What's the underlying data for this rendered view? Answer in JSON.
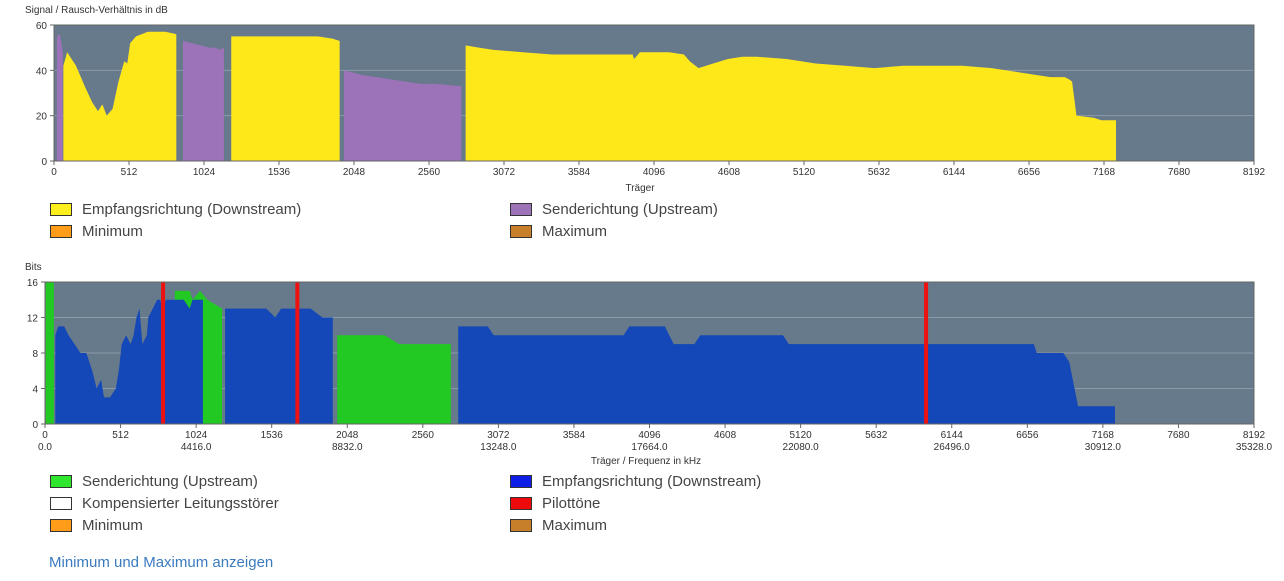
{
  "chart_data": [
    {
      "type": "area",
      "ylabel": "Signal / Rausch-Verhältnis in dB",
      "xlabel": "Träger",
      "xlim": [
        0,
        8192
      ],
      "ylim": [
        0,
        60
      ],
      "yticks": [
        0,
        20,
        40,
        60
      ],
      "xticks": [
        0,
        512,
        1024,
        1536,
        2048,
        2560,
        3072,
        3584,
        4096,
        4608,
        5120,
        5632,
        6144,
        6656,
        7168,
        7680,
        8192
      ],
      "grid": true,
      "background": "#677a8b",
      "series": [
        {
          "name": "Empfangsrichtung (Downstream)",
          "color": "#ffe81a",
          "segments": [
            [
              [
                64,
                42
              ],
              [
                90,
                48
              ],
              [
                150,
                42
              ],
              [
                210,
                33
              ],
              [
                260,
                26
              ],
              [
                300,
                22
              ],
              [
                330,
                25
              ],
              [
                360,
                20
              ],
              [
                400,
                23
              ],
              [
                440,
                35
              ],
              [
                480,
                44
              ],
              [
                500,
                43
              ],
              [
                520,
                52
              ],
              [
                560,
                55
              ],
              [
                600,
                56
              ],
              [
                640,
                57
              ],
              [
                700,
                57
              ],
              [
                760,
                57
              ],
              [
                835,
                56
              ]
            ],
            [
              [
                1210,
                55
              ],
              [
                1300,
                55
              ],
              [
                1400,
                55
              ],
              [
                1500,
                55
              ],
              [
                1600,
                55
              ],
              [
                1700,
                55
              ],
              [
                1800,
                55
              ],
              [
                1900,
                54
              ],
              [
                1950,
                53
              ]
            ],
            [
              [
                2810,
                51
              ],
              [
                2900,
                50
              ],
              [
                3000,
                49
              ],
              [
                3200,
                48
              ],
              [
                3400,
                47
              ],
              [
                3600,
                47
              ],
              [
                3800,
                47
              ],
              [
                3950,
                47
              ],
              [
                3960,
                45
              ],
              [
                4000,
                48
              ],
              [
                4200,
                48
              ],
              [
                4300,
                47
              ],
              [
                4340,
                44
              ],
              [
                4400,
                41
              ],
              [
                4500,
                43
              ],
              [
                4600,
                45
              ],
              [
                4700,
                46
              ],
              [
                4800,
                46
              ],
              [
                5000,
                45
              ],
              [
                5200,
                43
              ],
              [
                5400,
                42
              ],
              [
                5600,
                41
              ],
              [
                5800,
                42
              ],
              [
                6000,
                42
              ],
              [
                6200,
                42
              ],
              [
                6400,
                41
              ],
              [
                6600,
                39
              ],
              [
                6800,
                37
              ],
              [
                6900,
                37
              ],
              [
                6930,
                36
              ],
              [
                6950,
                35
              ],
              [
                6980,
                20
              ],
              [
                7100,
                19
              ],
              [
                7150,
                18
              ],
              [
                7250,
                18
              ]
            ]
          ]
        },
        {
          "name": "Senderichtung (Upstream)",
          "color": "#9c72b9",
          "segments": [
            [
              [
                20,
                55
              ],
              [
                40,
                56
              ],
              [
                60,
                48
              ]
            ],
            [
              [
                880,
                53
              ],
              [
                940,
                52
              ],
              [
                1000,
                51
              ],
              [
                1060,
                50
              ],
              [
                1100,
                50
              ],
              [
                1130,
                49
              ],
              [
                1160,
                50
              ]
            ],
            [
              [
                1980,
                40
              ],
              [
                2100,
                38
              ],
              [
                2200,
                37
              ],
              [
                2300,
                36
              ],
              [
                2400,
                35
              ],
              [
                2500,
                34
              ],
              [
                2600,
                34
              ],
              [
                2780,
                33
              ]
            ]
          ]
        }
      ],
      "legend": [
        "Empfangsrichtung (Downstream)",
        "Senderichtung (Upstream)",
        "Minimum",
        "Maximum"
      ]
    },
    {
      "type": "area",
      "ylabel": "Bits",
      "xlabel": "Träger / Frequenz in kHz",
      "xlim": [
        0,
        8192
      ],
      "ylim": [
        0,
        16
      ],
      "yticks": [
        0,
        4,
        8,
        12,
        16
      ],
      "xticks": [
        0,
        512,
        1024,
        1536,
        2048,
        2560,
        3072,
        3584,
        4096,
        4608,
        5120,
        5632,
        6144,
        6656,
        7168,
        7680,
        8192
      ],
      "freq_ticks": [
        [
          0,
          "0.0"
        ],
        [
          1024,
          "4416.0"
        ],
        [
          2048,
          "8832.0"
        ],
        [
          3072,
          "13248.0"
        ],
        [
          4096,
          "17664.0"
        ],
        [
          5120,
          "22080.0"
        ],
        [
          6144,
          "26496.0"
        ],
        [
          7168,
          "30912.0"
        ],
        [
          8192,
          "35328.0"
        ]
      ],
      "grid": true,
      "background": "#677a8b",
      "series": [
        {
          "name": "Senderichtung (Upstream)",
          "color": "#23c923",
          "segments": [
            [
              [
                5,
                16
              ],
              [
                60,
                16
              ]
            ],
            [
              [
                880,
                15
              ],
              [
                980,
                15
              ],
              [
                1000,
                14
              ],
              [
                1050,
                15
              ],
              [
                1100,
                14
              ],
              [
                1200,
                13
              ]
            ],
            [
              [
                1980,
                10
              ],
              [
                2100,
                10
              ],
              [
                2300,
                10
              ],
              [
                2400,
                9
              ],
              [
                2600,
                9
              ],
              [
                2750,
                9
              ]
            ]
          ]
        },
        {
          "name": "Empfangsrichtung (Downstream)",
          "color": "#1447b8",
          "segments": [
            [
              [
                70,
                10
              ],
              [
                90,
                11
              ],
              [
                130,
                11
              ],
              [
                160,
                10
              ],
              [
                200,
                9
              ],
              [
                240,
                8
              ],
              [
                280,
                8
              ],
              [
                320,
                6
              ],
              [
                350,
                4
              ],
              [
                380,
                5
              ],
              [
                400,
                3
              ],
              [
                440,
                3
              ],
              [
                480,
                4
              ],
              [
                500,
                6
              ],
              [
                520,
                9
              ],
              [
                550,
                10
              ],
              [
                580,
                9
              ],
              [
                600,
                10
              ],
              [
                620,
                12
              ],
              [
                640,
                13
              ],
              [
                660,
                9
              ],
              [
                690,
                10
              ],
              [
                700,
                12
              ],
              [
                760,
                14
              ],
              [
                780,
                14
              ],
              [
                800,
                13
              ],
              [
                820,
                14
              ],
              [
                900,
                14
              ],
              [
                940,
                14
              ],
              [
                980,
                13
              ],
              [
                1000,
                14
              ],
              [
                1040,
                14
              ],
              [
                1060,
                14
              ],
              [
                1070,
                14
              ]
            ],
            [
              [
                1220,
                13
              ],
              [
                1280,
                13
              ],
              [
                1400,
                13
              ],
              [
                1500,
                13
              ],
              [
                1560,
                12
              ],
              [
                1600,
                13
              ],
              [
                1700,
                13
              ],
              [
                1800,
                13
              ],
              [
                1880,
                12
              ],
              [
                1950,
                12
              ]
            ],
            [
              [
                2800,
                11
              ],
              [
                3000,
                11
              ],
              [
                3040,
                10
              ],
              [
                3200,
                10
              ],
              [
                3400,
                10
              ],
              [
                3600,
                10
              ],
              [
                3800,
                10
              ],
              [
                3920,
                10
              ],
              [
                3960,
                11
              ],
              [
                4200,
                11
              ],
              [
                4260,
                9
              ],
              [
                4400,
                9
              ],
              [
                4440,
                10
              ],
              [
                4600,
                10
              ],
              [
                4800,
                10
              ],
              [
                5000,
                10
              ],
              [
                5040,
                9
              ],
              [
                5200,
                9
              ],
              [
                5400,
                9
              ],
              [
                5600,
                9
              ],
              [
                5800,
                9
              ],
              [
                6000,
                9
              ],
              [
                6200,
                9
              ],
              [
                6400,
                9
              ],
              [
                6600,
                9
              ],
              [
                6700,
                9
              ],
              [
                6720,
                8
              ],
              [
                6800,
                8
              ],
              [
                6900,
                8
              ],
              [
                6940,
                7
              ],
              [
                7000,
                2
              ],
              [
                7100,
                2
              ],
              [
                7250,
                2
              ]
            ]
          ]
        }
      ],
      "pilot_tones": [
        800,
        1710,
        5970
      ],
      "legend": [
        "Senderichtung (Upstream)",
        "Empfangsrichtung (Downstream)",
        "Kompensierter Leitungsstörer",
        "Pilottöne",
        "Minimum",
        "Maximum"
      ]
    }
  ],
  "legend1": [
    {
      "label": "Empfangsrichtung (Downstream)",
      "color": "#ffee1d"
    },
    {
      "label": "Senderichtung (Upstream)",
      "color": "#9c72b9"
    },
    {
      "label": "Minimum",
      "color": "#ff9c1a"
    },
    {
      "label": "Maximum",
      "color": "#c87f2a"
    }
  ],
  "legend2": [
    {
      "label": "Senderichtung (Upstream)",
      "color": "#2ee62e"
    },
    {
      "label": "Empfangsrichtung (Downstream)",
      "color": "#0d1ee6"
    },
    {
      "label": "Kompensierter Leitungsstörer",
      "color": "#ffffff"
    },
    {
      "label": "Pilottöne",
      "color": "#ee0a0a"
    },
    {
      "label": "Minimum",
      "color": "#ff9c1a"
    },
    {
      "label": "Maximum",
      "color": "#c87f2a"
    }
  ],
  "link_text": "Minimum und Maximum anzeigen"
}
